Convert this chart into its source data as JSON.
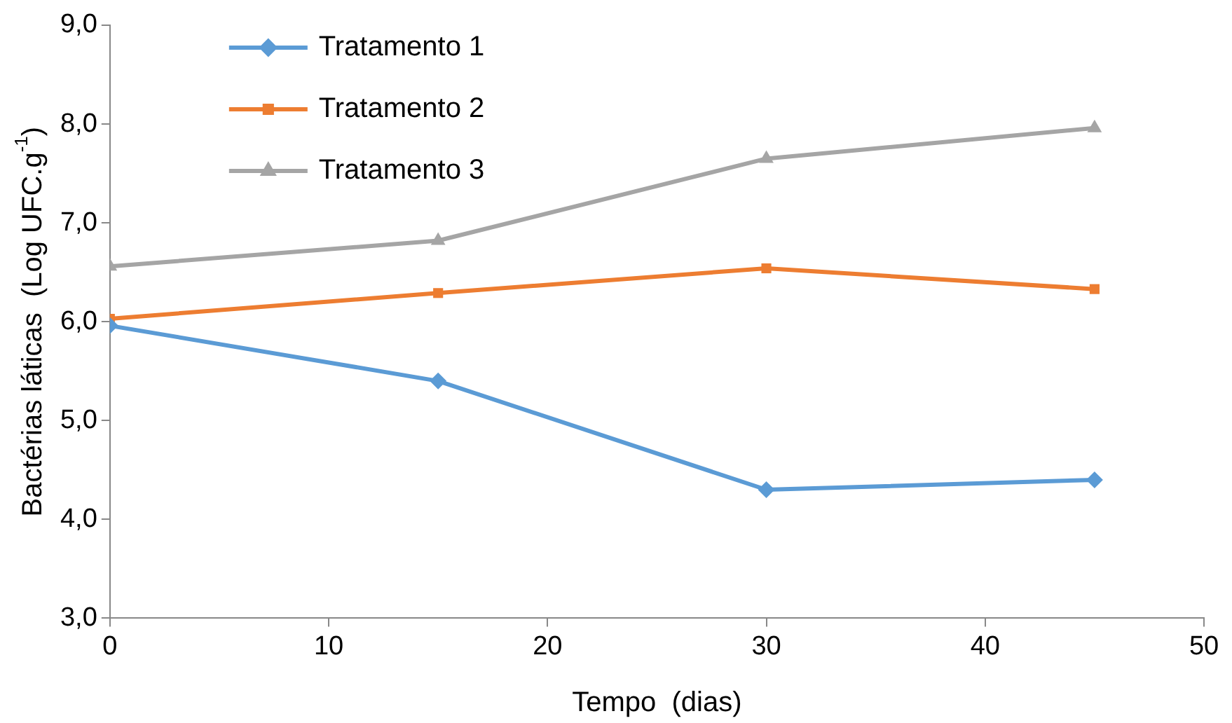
{
  "chart_data": {
    "type": "line",
    "xlabel": "Tempo  (dias)",
    "ylabel": "Bactérias láticas  (Log UFC.g$^{-1}$)",
    "x": [
      0,
      15,
      30,
      45
    ],
    "series": [
      {
        "name": "Tratamento 1",
        "color": "#5b9bd5",
        "marker": "diamond",
        "values": [
          5.96,
          5.4,
          4.3,
          4.4
        ]
      },
      {
        "name": "Tratamento 2",
        "color": "#ed7d31",
        "marker": "square",
        "values": [
          6.03,
          6.29,
          6.54,
          6.33
        ]
      },
      {
        "name": "Tratamento 3",
        "color": "#a5a5a5",
        "marker": "triangle",
        "values": [
          6.56,
          6.82,
          7.65,
          7.96
        ]
      }
    ],
    "xlim": [
      0,
      50
    ],
    "xticks": [
      0,
      10,
      20,
      30,
      40,
      50
    ],
    "ylim": [
      3,
      9
    ],
    "yticks": [
      {
        "value": 3,
        "label": "3,0"
      },
      {
        "value": 4,
        "label": "4,0"
      },
      {
        "value": 5,
        "label": "5,0"
      },
      {
        "value": 6,
        "label": "6,0"
      },
      {
        "value": 7,
        "label": "7,0"
      },
      {
        "value": 8,
        "label": "8,0"
      },
      {
        "value": 9,
        "label": "9,0"
      }
    ],
    "grid": false,
    "legend": "top left",
    "line_style": "solid"
  }
}
